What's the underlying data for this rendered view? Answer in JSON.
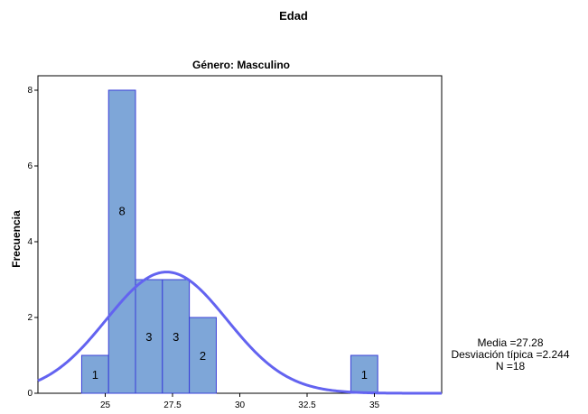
{
  "chart_data": {
    "type": "bar",
    "title": "Edad",
    "subtitle": "Género: Masculino",
    "xlabel": "",
    "ylabel": "Frecuencia",
    "xlim": [
      22.5,
      37.5
    ],
    "ylim": [
      0,
      8.0
    ],
    "x_ticks": [
      "25",
      "27.5",
      "30",
      "32.5",
      "35"
    ],
    "x_tick_values": [
      25,
      27.5,
      30,
      32.5,
      35
    ],
    "y_ticks": [
      "0",
      "2",
      "4",
      "6",
      "8"
    ],
    "y_tick_values": [
      0,
      2,
      4,
      6,
      8
    ],
    "bins": [
      {
        "from": 24.125,
        "to": 25.125,
        "value": 1,
        "label": "1"
      },
      {
        "from": 25.125,
        "to": 26.125,
        "value": 8,
        "label": "8"
      },
      {
        "from": 26.125,
        "to": 27.125,
        "value": 3,
        "label": "3"
      },
      {
        "from": 27.125,
        "to": 28.125,
        "value": 3,
        "label": "3"
      },
      {
        "from": 28.125,
        "to": 29.125,
        "value": 2,
        "label": "2"
      },
      {
        "from": 34.125,
        "to": 35.125,
        "value": 1,
        "label": "1"
      }
    ],
    "normal_curve": {
      "mean": 27.28,
      "sd": 2.244,
      "n": 18,
      "bin_width": 1
    },
    "stats": {
      "mean": "Media =27.28",
      "sd": "Desviación típica =2.244",
      "n": "N =18"
    },
    "colors": {
      "bar_fill": "#7ea6d8",
      "bar_stroke": "#3a3fd8",
      "curve": "#6363f0",
      "axis": "#000000"
    }
  }
}
